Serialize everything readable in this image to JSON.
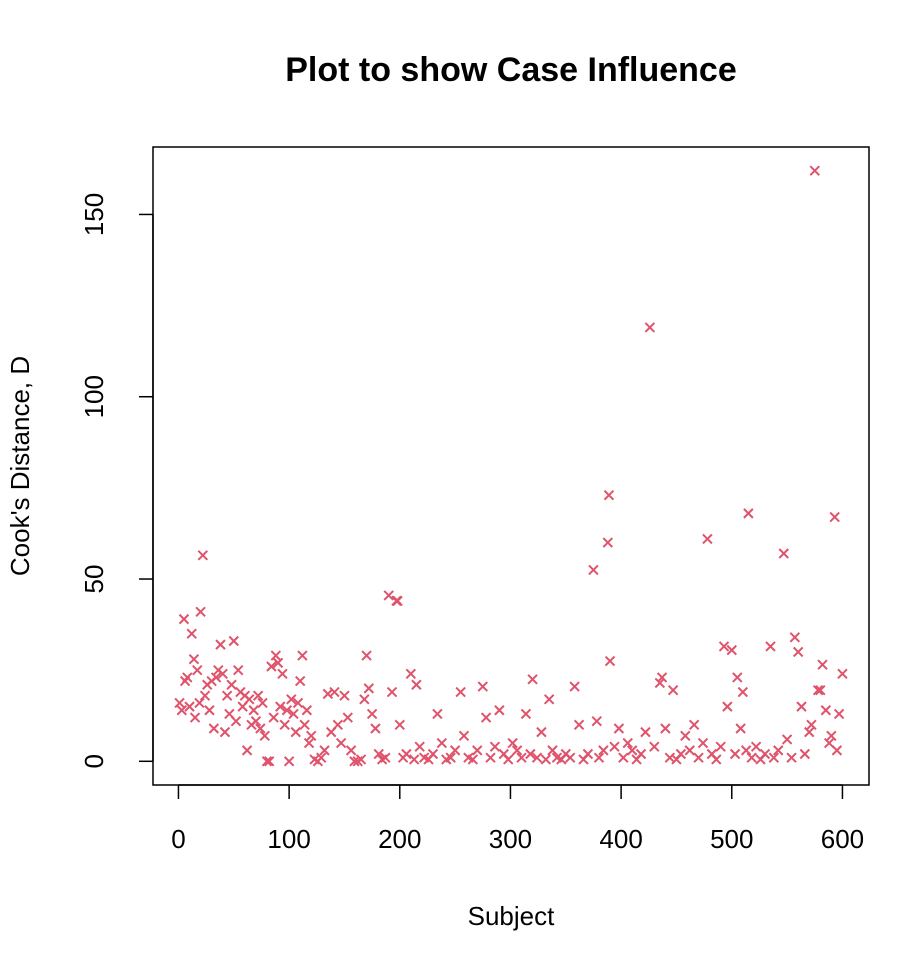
{
  "chart_data": {
    "type": "scatter",
    "title": "Plot to show Case Influence",
    "x_label": "Subject",
    "y_label": "Cook's Distance, D",
    "color": "#DF536B",
    "marker": "x",
    "xlim": [
      -23,
      624
    ],
    "ylim": [
      -6.5,
      168.5
    ],
    "xticks": [
      0,
      100,
      200,
      300,
      400,
      500,
      600
    ],
    "yticks": [
      0,
      50,
      100,
      150
    ],
    "x": [
      1,
      3,
      5,
      6,
      8,
      10,
      12,
      14,
      15,
      17,
      19,
      20,
      22,
      24,
      26,
      28,
      30,
      32,
      34,
      36,
      38,
      40,
      42,
      44,
      46,
      48,
      50,
      52,
      54,
      56,
      58,
      60,
      62,
      64,
      66,
      68,
      70,
      72,
      74,
      76,
      78,
      80,
      82,
      84,
      86,
      88,
      90,
      92,
      94,
      96,
      98,
      100,
      102,
      104,
      106,
      108,
      110,
      112,
      114,
      116,
      118,
      120,
      123,
      126,
      129,
      132,
      135,
      138,
      141,
      144,
      147,
      150,
      153,
      156,
      159,
      162,
      165,
      168,
      170,
      172,
      175,
      178,
      181,
      184,
      187,
      190,
      193,
      197,
      198,
      200,
      203,
      206,
      210,
      213,
      215,
      218,
      222,
      226,
      230,
      234,
      238,
      242,
      246,
      250,
      255,
      258,
      262,
      266,
      270,
      275,
      278,
      282,
      286,
      290,
      294,
      298,
      302,
      306,
      310,
      314,
      318,
      320,
      324,
      328,
      332,
      335,
      338,
      342,
      346,
      350,
      354,
      358,
      362,
      366,
      370,
      375,
      378,
      380,
      384,
      388,
      389,
      390,
      394,
      398,
      402,
      406,
      410,
      414,
      418,
      422,
      426,
      430,
      435,
      437,
      440,
      444,
      447,
      450,
      454,
      458,
      462,
      466,
      470,
      474,
      478,
      482,
      486,
      490,
      493,
      496,
      500,
      503,
      505,
      508,
      510,
      513,
      515,
      518,
      522,
      526,
      530,
      535,
      538,
      542,
      547,
      550,
      554,
      557,
      560,
      563,
      566,
      570,
      572,
      575,
      578,
      580,
      582,
      585,
      588,
      590,
      593,
      595,
      597,
      600
    ],
    "y": [
      16,
      14,
      39,
      22,
      23,
      15,
      35,
      28,
      12,
      25,
      16,
      41,
      56.5,
      18,
      21,
      14,
      22,
      9,
      23,
      25,
      32,
      24,
      8,
      18,
      13,
      21,
      33,
      11,
      25,
      19,
      15,
      18,
      3,
      17,
      10,
      14,
      11,
      18,
      9,
      16,
      7,
      0,
      0,
      26,
      12,
      29,
      27,
      15,
      24,
      10,
      14,
      0,
      17,
      13,
      8,
      16,
      22,
      29,
      10,
      14,
      5,
      7,
      0.5,
      0,
      1,
      3,
      18.5,
      8,
      19,
      10,
      5,
      18,
      12,
      3,
      0,
      0,
      0.5,
      17,
      29,
      20,
      13,
      9,
      2,
      0.5,
      1,
      45.5,
      19,
      44,
      44,
      10,
      1,
      2,
      24,
      0.5,
      21,
      4,
      1,
      0.5,
      2,
      13,
      5,
      0.5,
      1,
      3,
      19,
      7,
      1,
      0.5,
      3,
      20.5,
      12,
      1,
      4,
      14,
      2,
      0.5,
      5,
      3,
      1,
      13,
      2,
      22.5,
      1,
      8,
      0.5,
      17,
      3,
      1,
      0.5,
      2,
      1,
      20.5,
      10,
      0.5,
      2,
      52.5,
      11,
      1,
      3,
      60,
      73,
      27.5,
      4,
      9,
      1,
      5,
      3,
      0.5,
      2,
      8,
      119,
      4,
      21.5,
      23,
      9,
      1,
      19.5,
      0.5,
      2,
      7,
      3,
      10,
      1,
      5,
      61,
      2,
      0.5,
      4,
      31.5,
      15,
      30.5,
      2,
      23,
      9,
      19,
      3,
      68,
      1,
      4,
      0.5,
      2,
      31.5,
      1,
      3,
      57,
      6,
      1,
      34,
      30,
      15,
      2,
      8,
      10,
      162,
      19.5,
      19.5,
      26.5,
      14,
      5,
      7,
      67,
      3,
      13,
      24
    ]
  }
}
